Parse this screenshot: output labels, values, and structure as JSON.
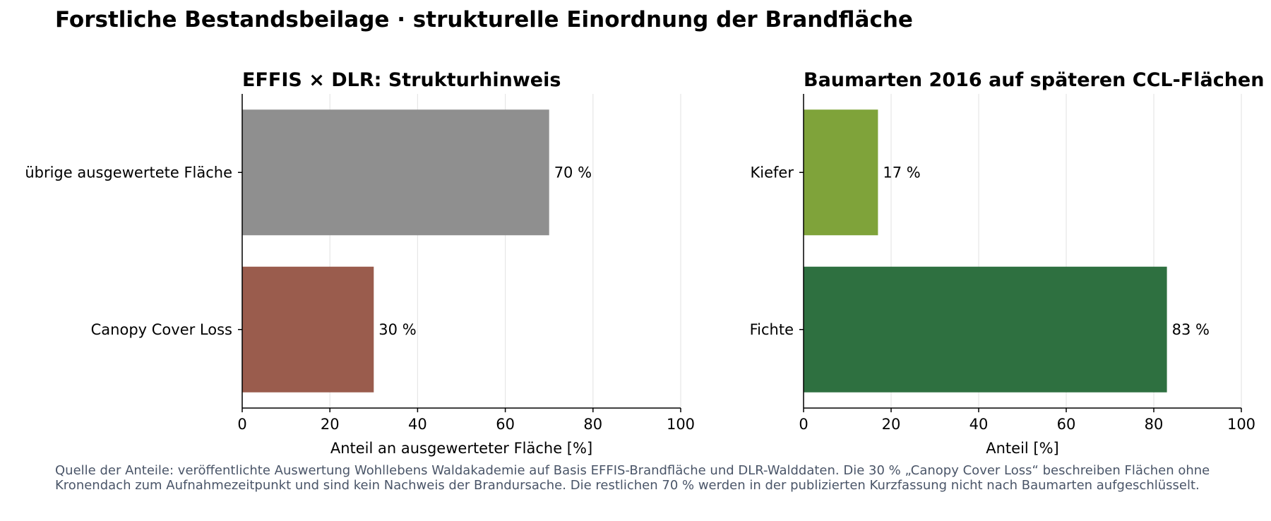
{
  "figure": {
    "title": "Forstliche Bestandsbeilage · strukturelle Einordnung der Brandfläche",
    "footnote": "Quelle der Anteile: veröffentlichte Auswertung Wohllebens Waldakademie auf Basis EFFIS-Brandfläche und DLR-Walddaten. Die 30 % „Canopy Cover Loss“ beschreiben Flächen ohne Kronendach zum Aufnahmezeitpunkt und sind kein Nachweis der Brandursache. Die restlichen 70 % werden in der publizierten Kurzfassung nicht nach Baumarten aufgeschlüsselt."
  },
  "chart_data": [
    {
      "type": "bar",
      "orientation": "horizontal",
      "title": "EFFIS × DLR: Strukturhinweis",
      "xlabel": "Anteil an ausgewerteter Fläche [%]",
      "ylabel": "",
      "xlim": [
        0,
        100
      ],
      "xticks": [
        0,
        20,
        40,
        60,
        80,
        100
      ],
      "grid": "vertical",
      "categories": [
        "übrige ausgewertete Fläche",
        "Canopy Cover Loss"
      ],
      "values": [
        70,
        30
      ],
      "value_labels": [
        "70 %",
        "30 %"
      ],
      "colors": [
        "#8f8f8f",
        "#9a5c4d"
      ]
    },
    {
      "type": "bar",
      "orientation": "horizontal",
      "title": "Baumarten 2016 auf späteren CCL-Flächen",
      "xlabel": "Anteil [%]",
      "ylabel": "",
      "xlim": [
        0,
        100
      ],
      "xticks": [
        0,
        20,
        40,
        60,
        80,
        100
      ],
      "grid": "vertical",
      "categories": [
        "Kiefer",
        "Fichte"
      ],
      "values": [
        17,
        83
      ],
      "value_labels": [
        "17 %",
        "83 %"
      ],
      "colors": [
        "#7fa33a",
        "#2e7040"
      ]
    }
  ]
}
